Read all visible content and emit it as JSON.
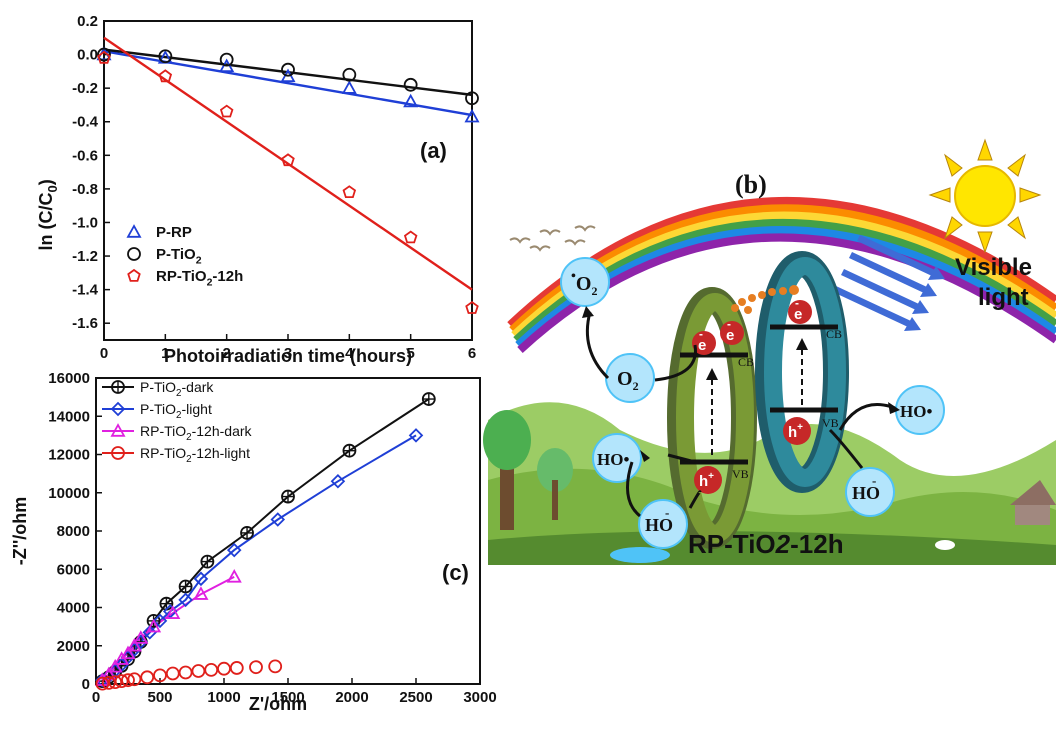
{
  "chart_data": [
    {
      "panel": "(a)",
      "type": "scatter",
      "xlabel": "Photoirradiation time (hours)",
      "ylabel": "ln (C/C",
      "ylabel_sub": "0",
      "ylabel_close": ")",
      "xlim": [
        0,
        6
      ],
      "ylim": [
        -1.7,
        0.2
      ],
      "xticks": [
        "0",
        "1",
        "2",
        "3",
        "4",
        "5",
        "6"
      ],
      "yticks": [
        "0.2",
        "0.0",
        "-0.2",
        "-0.4",
        "-0.6",
        "-0.8",
        "-1.0",
        "-1.2",
        "-1.4",
        "-1.6"
      ],
      "legend_position": "bottom-left",
      "series": [
        {
          "name": "P-RP",
          "name_sub": "",
          "marker": "triangle",
          "color": "#1f3fd6",
          "x": [
            0,
            1,
            2,
            3,
            4,
            5,
            6
          ],
          "y": [
            0,
            -0.02,
            -0.07,
            -0.13,
            -0.2,
            -0.28,
            -0.37
          ],
          "fit": [
            [
              0,
              0.02
            ],
            [
              6,
              -0.36
            ]
          ]
        },
        {
          "name": "P-TiO",
          "name_sub": "2",
          "marker": "circle",
          "color": "#111111",
          "x": [
            0,
            1,
            2,
            3,
            4,
            5,
            6
          ],
          "y": [
            0,
            -0.01,
            -0.03,
            -0.09,
            -0.12,
            -0.18,
            -0.26
          ],
          "fit": [
            [
              0,
              0.03
            ],
            [
              6,
              -0.24
            ]
          ]
        },
        {
          "name": "RP-TiO",
          "name_sub": "2",
          "name_suffix": "-12h",
          "marker": "pentagon",
          "color": "#e0201b",
          "x": [
            0,
            1,
            2,
            3,
            4,
            5,
            6
          ],
          "y": [
            -0.02,
            -0.13,
            -0.34,
            -0.63,
            -0.82,
            -1.09,
            -1.51
          ],
          "fit": [
            [
              0,
              0.1
            ],
            [
              6,
              -1.4
            ]
          ]
        }
      ]
    },
    {
      "panel": "(c)",
      "type": "line",
      "xlabel": "Z'/ohm",
      "ylabel": "-Z''/ohm",
      "xlim": [
        0,
        3000
      ],
      "ylim": [
        0,
        16000
      ],
      "xticks": [
        "0",
        "500",
        "1000",
        "1500",
        "2000",
        "2500",
        "3000"
      ],
      "yticks": [
        "0",
        "2000",
        "4000",
        "6000",
        "8000",
        "10000",
        "12000",
        "14000",
        "16000"
      ],
      "legend_position": "top-left",
      "series": [
        {
          "name": "P-TiO",
          "name_sub": "2",
          "name_suffix": "-dark",
          "marker": "circle-plus",
          "color": "#111111",
          "x": [
            50,
            100,
            150,
            200,
            250,
            300,
            350,
            450,
            550,
            700,
            870,
            1180,
            1500,
            1980,
            2600
          ],
          "y": [
            150,
            350,
            650,
            950,
            1300,
            1700,
            2200,
            3300,
            4200,
            5100,
            6400,
            7900,
            9800,
            12200,
            14900
          ]
        },
        {
          "name": "P-TiO",
          "name_sub": "2",
          "name_suffix": "-light",
          "marker": "diamond",
          "color": "#1f3fd6",
          "x": [
            50,
            100,
            150,
            200,
            250,
            300,
            350,
            420,
            500,
            580,
            700,
            820,
            1080,
            1420,
            1890,
            2500
          ],
          "y": [
            200,
            400,
            700,
            1000,
            1400,
            1800,
            2200,
            2700,
            3300,
            3800,
            4400,
            5500,
            7000,
            8600,
            10600,
            13000
          ]
        },
        {
          "name": "RP-TiO",
          "name_sub": "2",
          "name_suffix": "-12h-dark",
          "marker": "triangle",
          "color": "#e020e0",
          "x": [
            50,
            100,
            150,
            200,
            250,
            300,
            350,
            450,
            600,
            820,
            1080
          ],
          "y": [
            200,
            500,
            900,
            1300,
            1600,
            2000,
            2400,
            3000,
            3700,
            4700,
            5600
          ]
        },
        {
          "name": "RP-TiO",
          "name_sub": "2",
          "name_suffix": "-12h-light",
          "marker": "circle",
          "color": "#e0201b",
          "x": [
            50,
            100,
            150,
            200,
            250,
            300,
            400,
            500,
            600,
            700,
            800,
            900,
            1000,
            1100,
            1250,
            1400
          ],
          "y": [
            20,
            60,
            100,
            150,
            200,
            250,
            350,
            450,
            550,
            600,
            680,
            740,
            800,
            840,
            880,
            920
          ]
        }
      ]
    }
  ],
  "diagram_b": {
    "panel": "(b)",
    "caption_main": "RP-TiO",
    "caption_sub": "2",
    "caption_suffix": "-12h",
    "visible_label_1": "Visible",
    "visible_label_2": "light",
    "superoxide": "O",
    "superoxide_sub": "2",
    "superoxide_dot": "•",
    "oxygen": "O",
    "oxygen_sub": "2",
    "hydroxyl_radical": "HO•",
    "hydroxide": "HO",
    "hydroxide_charge": "-",
    "electron": "e",
    "electron_charge": "-",
    "hole": "h",
    "hole_charge": "+",
    "cb": "CB",
    "vb": "VB",
    "colors": {
      "green_ring": "#6b8e23",
      "blue_ring": "#2e7f8f",
      "sun": "#ffd700",
      "hill": "#8bc34a"
    }
  }
}
